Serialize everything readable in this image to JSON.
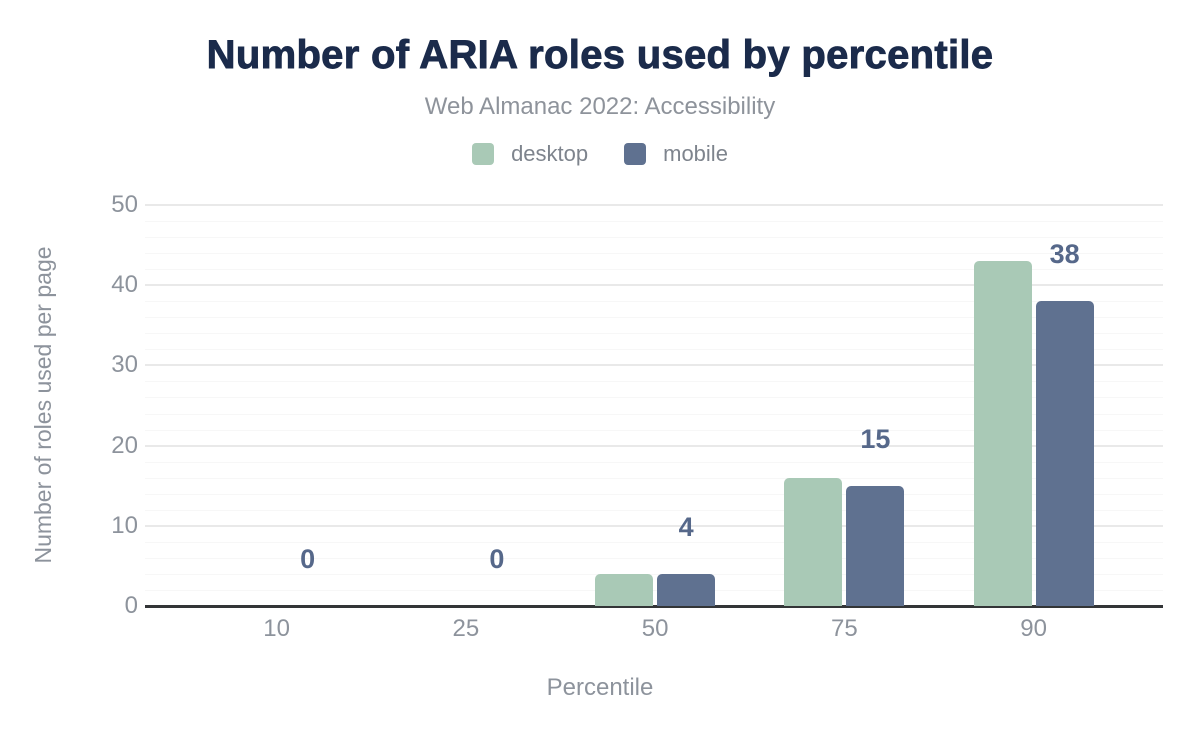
{
  "chart_data": {
    "type": "bar",
    "title": "Number of ARIA roles used by percentile",
    "subtitle": "Web Almanac 2022: Accessibility",
    "xlabel": "Percentile",
    "ylabel": "Number of roles used per page",
    "categories": [
      "10",
      "25",
      "50",
      "75",
      "90"
    ],
    "series": [
      {
        "name": "desktop",
        "color": "#a9c9b6",
        "values": [
          0,
          0,
          4,
          16,
          43
        ]
      },
      {
        "name": "mobile",
        "color": "#5f7190",
        "values": [
          0,
          0,
          4,
          15,
          38
        ]
      }
    ],
    "data_labels": {
      "series": "mobile",
      "values": [
        "0",
        "0",
        "4",
        "15",
        "38"
      ],
      "color": "#56688a"
    },
    "ylim": [
      0,
      50
    ],
    "y_ticks": [
      0,
      10,
      20,
      30,
      40,
      50
    ],
    "grid": {
      "major_step": 10,
      "minor_step": 2,
      "visible": true
    },
    "legend_position": "top",
    "colors": {
      "title": "#1b2b4b",
      "subtitle_text": "#8e939b",
      "axis_text": "#8d939c",
      "axis_line": "#333537",
      "major_gridline": "#e9e9e9",
      "minor_gridline": "#f7f7f7",
      "background": "#ffffff"
    }
  }
}
